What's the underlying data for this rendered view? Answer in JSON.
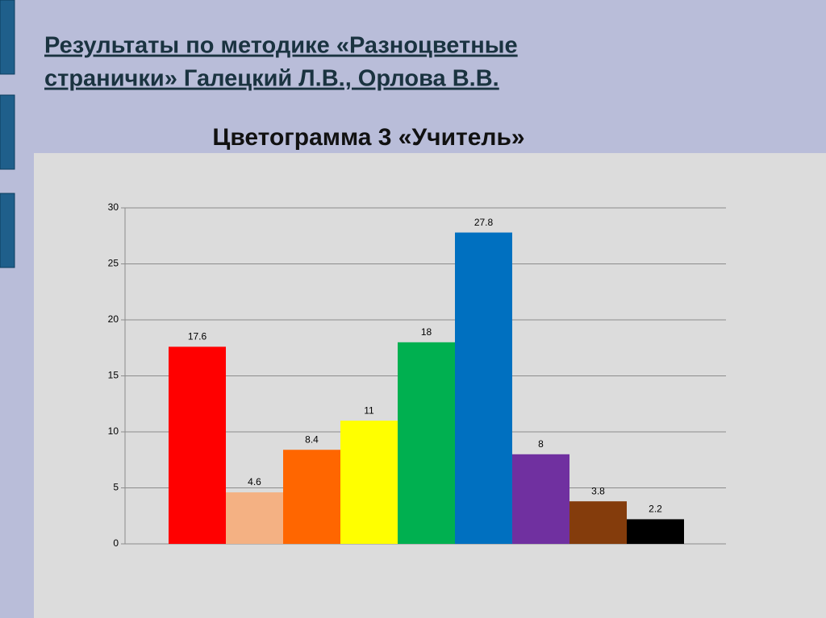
{
  "slide": {
    "title_lines": [
      "Результаты по методике «Разноцветные",
      "странички» Галецкий Л.В., Орлова В.В."
    ]
  },
  "chart_data": {
    "type": "bar",
    "title": "Цветограмма 3 «Учитель»",
    "categories": [
      null,
      null,
      null,
      null,
      null,
      null,
      null,
      null,
      null
    ],
    "values": [
      17.6,
      4.6,
      8.4,
      11,
      18,
      27.8,
      8,
      3.8,
      2.2
    ],
    "colors": [
      "#ff0000",
      "#f4b183",
      "#ff6600",
      "#ffff00",
      "#00b050",
      "#0070c0",
      "#7030a0",
      "#843c0c",
      "#000000"
    ],
    "ylim": [
      0,
      30
    ],
    "yticks": [
      0,
      5,
      10,
      15,
      20,
      25,
      30
    ],
    "grid": true
  }
}
